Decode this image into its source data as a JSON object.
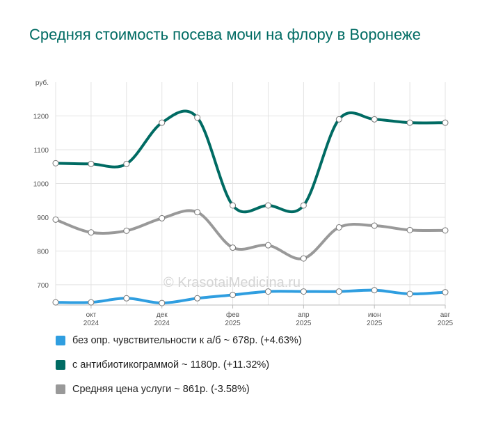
{
  "title": "Средняя стоимость посева мочи на флору в Воронеже",
  "watermark": "© KrasotaiMedicina.ru",
  "chart_data": {
    "type": "line",
    "ylabel": "руб.",
    "ylim": [
      640,
      1300
    ],
    "yticks": [
      700,
      800,
      900,
      1000,
      1100,
      1200
    ],
    "x": [
      0,
      1,
      2,
      3,
      4,
      5,
      6,
      7,
      8,
      9,
      10,
      11
    ],
    "x_ticks": [
      {
        "x": 1,
        "month": "окт",
        "year": "2024"
      },
      {
        "x": 3,
        "month": "дек",
        "year": "2024"
      },
      {
        "x": 5,
        "month": "фев",
        "year": "2025"
      },
      {
        "x": 7,
        "month": "апр",
        "year": "2025"
      },
      {
        "x": 9,
        "month": "июн",
        "year": "2025"
      },
      {
        "x": 11,
        "month": "авг",
        "year": "2025"
      }
    ],
    "series": [
      {
        "name": "без опр. чувствительности к а/б ~ 678р. (+4.63%)",
        "color": "#2f9ee0",
        "values": [
          648,
          648,
          660,
          646,
          660,
          670,
          680,
          680,
          680,
          684,
          673,
          678
        ]
      },
      {
        "name": "с антибиотикограммой ~ 1180р. (+11.32%)",
        "color": "#006b63",
        "values": [
          1060,
          1058,
          1058,
          1180,
          1195,
          935,
          935,
          935,
          1190,
          1190,
          1180,
          1180
        ]
      },
      {
        "name": "Средняя цена услуги ~ 861р. (-3.58%)",
        "color": "#999999",
        "values": [
          893,
          855,
          860,
          897,
          915,
          810,
          817,
          778,
          870,
          875,
          862,
          861
        ]
      }
    ],
    "grid": true,
    "legend_position": "bottom"
  }
}
